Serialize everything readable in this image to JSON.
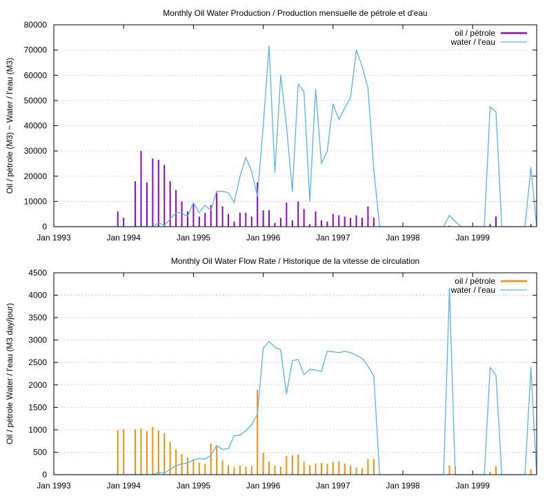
{
  "chart_data": [
    {
      "type": "bar",
      "title": "Monthly Oil  Water Production / Production mensuelle de pétrole et d'eau",
      "xlabel": "",
      "ylabel": "Oil / pétrole (M3) ~  Water / l'eau (M3)",
      "x_ticks": [
        "Jan 1993",
        "Jan 1994",
        "Jan 1995",
        "Jan 1996",
        "Jan 1997",
        "Jan 1998",
        "Jan 1999"
      ],
      "y_ticks": [
        "0",
        "10000",
        "20000",
        "30000",
        "40000",
        "50000",
        "60000",
        "70000",
        "80000"
      ],
      "ylim": [
        0,
        80000
      ],
      "xlim": [
        "1993-01",
        "1999-12"
      ],
      "grid": true,
      "legend_position": "top-right",
      "series": [
        {
          "name": "oil / pétrole",
          "kind": "bar",
          "color": "#9400d3",
          "points": [
            {
              "x": "1993-12",
              "y": 6000
            },
            {
              "x": "1994-01",
              "y": 3500
            },
            {
              "x": "1994-03",
              "y": 18000
            },
            {
              "x": "1994-04",
              "y": 30000
            },
            {
              "x": "1994-05",
              "y": 17500
            },
            {
              "x": "1994-06",
              "y": 27000
            },
            {
              "x": "1994-07",
              "y": 26500
            },
            {
              "x": "1994-08",
              "y": 24500
            },
            {
              "x": "1994-09",
              "y": 18000
            },
            {
              "x": "1994-10",
              "y": 14500
            },
            {
              "x": "1994-11",
              "y": 10000
            },
            {
              "x": "1994-12",
              "y": 6000
            },
            {
              "x": "1995-01",
              "y": 9000
            },
            {
              "x": "1995-02",
              "y": 4000
            },
            {
              "x": "1995-03",
              "y": 5500
            },
            {
              "x": "1995-04",
              "y": 8500
            },
            {
              "x": "1995-05",
              "y": 13500
            },
            {
              "x": "1995-06",
              "y": 8000
            },
            {
              "x": "1995-07",
              "y": 5000
            },
            {
              "x": "1995-08",
              "y": 2000
            },
            {
              "x": "1995-09",
              "y": 5500
            },
            {
              "x": "1995-10",
              "y": 5500
            },
            {
              "x": "1995-11",
              "y": 4000
            },
            {
              "x": "1995-12",
              "y": 17500
            },
            {
              "x": "1996-01",
              "y": 6500
            },
            {
              "x": "1996-02",
              "y": 6500
            },
            {
              "x": "1996-03",
              "y": 1500
            },
            {
              "x": "1996-04",
              "y": 3500
            },
            {
              "x": "1996-05",
              "y": 9500
            },
            {
              "x": "1996-06",
              "y": 2500
            },
            {
              "x": "1996-07",
              "y": 10000
            },
            {
              "x": "1996-08",
              "y": 7000
            },
            {
              "x": "1996-09",
              "y": 1000
            },
            {
              "x": "1996-10",
              "y": 6000
            },
            {
              "x": "1996-11",
              "y": 2500
            },
            {
              "x": "1996-12",
              "y": 2000
            },
            {
              "x": "1997-01",
              "y": 5000
            },
            {
              "x": "1997-02",
              "y": 4500
            },
            {
              "x": "1997-03",
              "y": 4000
            },
            {
              "x": "1997-04",
              "y": 3500
            },
            {
              "x": "1997-05",
              "y": 4500
            },
            {
              "x": "1997-06",
              "y": 3500
            },
            {
              "x": "1997-07",
              "y": 8000
            },
            {
              "x": "1997-08",
              "y": 3500
            },
            {
              "x": "1998-09",
              "y": 400
            },
            {
              "x": "1999-04",
              "y": 1000
            },
            {
              "x": "1999-05",
              "y": 4000
            },
            {
              "x": "1999-11",
              "y": 1000
            }
          ]
        },
        {
          "name": "water / l'eau",
          "kind": "line",
          "color": "#56b4e9",
          "points": [
            {
              "x": "1993-01",
              "y": 0
            },
            {
              "x": "1994-06",
              "y": 0
            },
            {
              "x": "1994-07",
              "y": 1500
            },
            {
              "x": "1994-08",
              "y": 500
            },
            {
              "x": "1994-09",
              "y": 3000
            },
            {
              "x": "1994-10",
              "y": 5500
            },
            {
              "x": "1994-11",
              "y": 5500
            },
            {
              "x": "1994-12",
              "y": 4000
            },
            {
              "x": "1995-01",
              "y": 9500
            },
            {
              "x": "1995-02",
              "y": 5500
            },
            {
              "x": "1995-03",
              "y": 8500
            },
            {
              "x": "1995-04",
              "y": 6500
            },
            {
              "x": "1995-05",
              "y": 14000
            },
            {
              "x": "1995-06",
              "y": 14000
            },
            {
              "x": "1995-07",
              "y": 13500
            },
            {
              "x": "1995-08",
              "y": 9500
            },
            {
              "x": "1995-09",
              "y": 20000
            },
            {
              "x": "1995-10",
              "y": 27500
            },
            {
              "x": "1995-11",
              "y": 22000
            },
            {
              "x": "1995-12",
              "y": 12000
            },
            {
              "x": "1996-01",
              "y": 40000
            },
            {
              "x": "1996-02",
              "y": 71500
            },
            {
              "x": "1996-03",
              "y": 21500
            },
            {
              "x": "1996-04",
              "y": 60000
            },
            {
              "x": "1996-05",
              "y": 40000
            },
            {
              "x": "1996-06",
              "y": 14000
            },
            {
              "x": "1996-07",
              "y": 56500
            },
            {
              "x": "1996-08",
              "y": 53500
            },
            {
              "x": "1996-09",
              "y": 10000
            },
            {
              "x": "1996-10",
              "y": 54500
            },
            {
              "x": "1996-11",
              "y": 25000
            },
            {
              "x": "1996-12",
              "y": 30000
            },
            {
              "x": "1997-01",
              "y": 48500
            },
            {
              "x": "1997-02",
              "y": 42500
            },
            {
              "x": "1997-03",
              "y": 47000
            },
            {
              "x": "1997-04",
              "y": 51000
            },
            {
              "x": "1997-05",
              "y": 70000
            },
            {
              "x": "1997-06",
              "y": 63500
            },
            {
              "x": "1997-07",
              "y": 55000
            },
            {
              "x": "1997-08",
              "y": 22500
            },
            {
              "x": "1997-09",
              "y": 0
            },
            {
              "x": "1998-08",
              "y": 0
            },
            {
              "x": "1998-09",
              "y": 4500
            },
            {
              "x": "1998-10",
              "y": 2000
            },
            {
              "x": "1998-11",
              "y": 0
            },
            {
              "x": "1999-03",
              "y": 0
            },
            {
              "x": "1999-04",
              "y": 47500
            },
            {
              "x": "1999-05",
              "y": 45500
            },
            {
              "x": "1999-06",
              "y": 0
            },
            {
              "x": "1999-10",
              "y": 0
            },
            {
              "x": "1999-11",
              "y": 23500
            },
            {
              "x": "1999-12",
              "y": 0
            }
          ]
        }
      ]
    },
    {
      "type": "bar",
      "title": "Monthly Oil  Water Flow Rate / Historique de la vitesse de circulation",
      "xlabel": "",
      "ylabel": "Oil / pétrole  Water / l'eau (M3 day/jour)",
      "x_ticks": [
        "Jan 1993",
        "Jan 1994",
        "Jan 1995",
        "Jan 1996",
        "Jan 1997",
        "Jan 1998",
        "Jan 1999"
      ],
      "y_ticks": [
        "0",
        "500",
        "1000",
        "1500",
        "2000",
        "2500",
        "3000",
        "3500",
        "4000",
        "4500"
      ],
      "ylim": [
        0,
        4500
      ],
      "xlim": [
        "1993-01",
        "1999-12"
      ],
      "grid": true,
      "legend_position": "top-right",
      "series": [
        {
          "name": "oil / pétrole",
          "kind": "bar",
          "color": "#ff8c00",
          "points": [
            {
              "x": "1993-12",
              "y": 990
            },
            {
              "x": "1994-01",
              "y": 1020
            },
            {
              "x": "1994-03",
              "y": 1010
            },
            {
              "x": "1994-04",
              "y": 1030
            },
            {
              "x": "1994-05",
              "y": 970
            },
            {
              "x": "1994-06",
              "y": 1060
            },
            {
              "x": "1994-07",
              "y": 980
            },
            {
              "x": "1994-08",
              "y": 930
            },
            {
              "x": "1994-09",
              "y": 730
            },
            {
              "x": "1994-10",
              "y": 560
            },
            {
              "x": "1994-11",
              "y": 460
            },
            {
              "x": "1994-12",
              "y": 380
            },
            {
              "x": "1995-01",
              "y": 320
            },
            {
              "x": "1995-02",
              "y": 270
            },
            {
              "x": "1995-03",
              "y": 240
            },
            {
              "x": "1995-04",
              "y": 690
            },
            {
              "x": "1995-05",
              "y": 640
            },
            {
              "x": "1995-06",
              "y": 320
            },
            {
              "x": "1995-07",
              "y": 210
            },
            {
              "x": "1995-08",
              "y": 160
            },
            {
              "x": "1995-09",
              "y": 200
            },
            {
              "x": "1995-10",
              "y": 180
            },
            {
              "x": "1995-11",
              "y": 190
            },
            {
              "x": "1995-12",
              "y": 1890
            },
            {
              "x": "1996-01",
              "y": 490
            },
            {
              "x": "1996-02",
              "y": 290
            },
            {
              "x": "1996-03",
              "y": 200
            },
            {
              "x": "1996-04",
              "y": 180
            },
            {
              "x": "1996-05",
              "y": 420
            },
            {
              "x": "1996-06",
              "y": 430
            },
            {
              "x": "1996-07",
              "y": 450
            },
            {
              "x": "1996-08",
              "y": 290
            },
            {
              "x": "1996-09",
              "y": 210
            },
            {
              "x": "1996-10",
              "y": 250
            },
            {
              "x": "1996-11",
              "y": 260
            },
            {
              "x": "1996-12",
              "y": 240
            },
            {
              "x": "1997-01",
              "y": 280
            },
            {
              "x": "1997-02",
              "y": 290
            },
            {
              "x": "1997-03",
              "y": 250
            },
            {
              "x": "1997-04",
              "y": 200
            },
            {
              "x": "1997-05",
              "y": 160
            },
            {
              "x": "1997-06",
              "y": 140
            },
            {
              "x": "1997-07",
              "y": 350
            },
            {
              "x": "1997-08",
              "y": 350
            },
            {
              "x": "1998-09",
              "y": 210
            },
            {
              "x": "1998-10",
              "y": 190
            },
            {
              "x": "1999-04",
              "y": 60
            },
            {
              "x": "1999-05",
              "y": 190
            },
            {
              "x": "1999-11",
              "y": 120
            }
          ]
        },
        {
          "name": "water / l'eau",
          "kind": "line",
          "color": "#56b4e9",
          "points": [
            {
              "x": "1993-01",
              "y": 0
            },
            {
              "x": "1994-06",
              "y": 0
            },
            {
              "x": "1994-07",
              "y": 50
            },
            {
              "x": "1994-08",
              "y": 30
            },
            {
              "x": "1994-09",
              "y": 120
            },
            {
              "x": "1994-10",
              "y": 200
            },
            {
              "x": "1994-11",
              "y": 240
            },
            {
              "x": "1994-12",
              "y": 260
            },
            {
              "x": "1995-01",
              "y": 330
            },
            {
              "x": "1995-02",
              "y": 360
            },
            {
              "x": "1995-03",
              "y": 350
            },
            {
              "x": "1995-04",
              "y": 430
            },
            {
              "x": "1995-05",
              "y": 650
            },
            {
              "x": "1995-06",
              "y": 560
            },
            {
              "x": "1995-07",
              "y": 580
            },
            {
              "x": "1995-08",
              "y": 870
            },
            {
              "x": "1995-09",
              "y": 880
            },
            {
              "x": "1995-10",
              "y": 980
            },
            {
              "x": "1995-11",
              "y": 1110
            },
            {
              "x": "1995-12",
              "y": 1350
            },
            {
              "x": "1996-01",
              "y": 2820
            },
            {
              "x": "1996-02",
              "y": 2970
            },
            {
              "x": "1996-03",
              "y": 2840
            },
            {
              "x": "1996-04",
              "y": 2780
            },
            {
              "x": "1996-05",
              "y": 1800
            },
            {
              "x": "1996-06",
              "y": 2540
            },
            {
              "x": "1996-07",
              "y": 2570
            },
            {
              "x": "1996-08",
              "y": 2230
            },
            {
              "x": "1996-09",
              "y": 2350
            },
            {
              "x": "1996-10",
              "y": 2330
            },
            {
              "x": "1996-11",
              "y": 2300
            },
            {
              "x": "1996-12",
              "y": 2750
            },
            {
              "x": "1997-01",
              "y": 2740
            },
            {
              "x": "1997-02",
              "y": 2720
            },
            {
              "x": "1997-03",
              "y": 2750
            },
            {
              "x": "1997-04",
              "y": 2720
            },
            {
              "x": "1997-05",
              "y": 2660
            },
            {
              "x": "1997-06",
              "y": 2590
            },
            {
              "x": "1997-07",
              "y": 2420
            },
            {
              "x": "1997-08",
              "y": 2200
            },
            {
              "x": "1997-09",
              "y": 0
            },
            {
              "x": "1998-08",
              "y": 0
            },
            {
              "x": "1998-09",
              "y": 4150
            },
            {
              "x": "1998-10",
              "y": 0
            },
            {
              "x": "1999-03",
              "y": 0
            },
            {
              "x": "1999-04",
              "y": 2390
            },
            {
              "x": "1999-05",
              "y": 2220
            },
            {
              "x": "1999-06",
              "y": 0
            },
            {
              "x": "1999-10",
              "y": 0
            },
            {
              "x": "1999-11",
              "y": 2390
            },
            {
              "x": "1999-12",
              "y": 0
            }
          ]
        }
      ]
    }
  ]
}
